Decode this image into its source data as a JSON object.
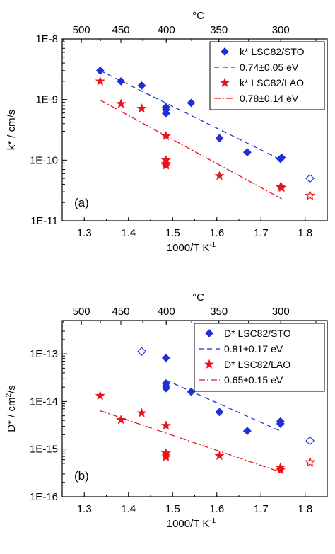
{
  "chart_data": [
    {
      "type": "scatter",
      "panel_label": "(a)",
      "xlabel": "1000/T K",
      "xlabel_sup": "-1",
      "ylabel": "k* / cm/s",
      "ylabel_sup": "",
      "top_axis_label": "°C",
      "y_log": true,
      "xlim": [
        1.25,
        1.85
      ],
      "ylim_exp": [
        -11,
        -8
      ],
      "x_ticks": [
        1.3,
        1.4,
        1.5,
        1.6,
        1.7,
        1.8
      ],
      "x_tick_labels": [
        "1.3",
        "1.4",
        "1.5",
        "1.6",
        "1.7",
        "1.8"
      ],
      "y_ticks_exp": [
        -11,
        -10,
        -9,
        -8
      ],
      "y_tick_labels": [
        "1E-11",
        "1E-10",
        "1E-9",
        "1E-8"
      ],
      "top_ticks_celsius": [
        500,
        450,
        400,
        350,
        300
      ],
      "top_tick_labels": [
        "500",
        "450",
        "400",
        "350",
        "300"
      ],
      "legend_position": "top-right",
      "series": [
        {
          "name": "k* LSC82/STO",
          "marker": "diamond",
          "color": "#1f2fd8",
          "x": [
            1.336,
            1.383,
            1.43,
            1.485,
            1.485,
            1.485,
            1.542,
            1.606,
            1.669,
            1.744,
            1.747
          ],
          "y": [
            3e-09,
            2e-09,
            1.7e-09,
            7.5e-10,
            6.8e-10,
            5.9e-10,
            8.8e-10,
            2.3e-10,
            1.35e-10,
            1.05e-10,
            1.1e-10
          ],
          "open_points": {
            "x": [
              1.811
            ],
            "y": [
              5e-11
            ]
          }
        },
        {
          "name": "k* LSC82/LAO",
          "marker": "star",
          "color": "#e8141b",
          "x": [
            1.336,
            1.383,
            1.43,
            1.485,
            1.485,
            1.485,
            1.485,
            1.606,
            1.744,
            1.747
          ],
          "y": [
            2e-09,
            8.5e-10,
            7.1e-10,
            2.5e-10,
            1e-10,
            8.8e-11,
            8.2e-11,
            5.5e-11,
            3.6e-11,
            3.5e-11
          ],
          "open_points": {
            "x": [
              1.811
            ],
            "y": [
              2.6e-11
            ]
          }
        }
      ],
      "fits": [
        {
          "name": "0.74±0.05 eV",
          "style": "dashed",
          "color": "#1f2fd8",
          "x": [
            1.336,
            1.747
          ],
          "y": [
            3e-09,
            1e-10
          ]
        },
        {
          "name": "0.78±0.14 eV",
          "style": "dashdot",
          "color": "#e8141b",
          "x": [
            1.336,
            1.747
          ],
          "y": [
            9.8e-10,
            2.3e-11
          ]
        }
      ]
    },
    {
      "type": "scatter",
      "panel_label": "(b)",
      "xlabel": "1000/T K",
      "xlabel_sup": "-1",
      "ylabel": "D* / cm",
      "ylabel_sup": "2",
      "ylabel_tail": "/s",
      "top_axis_label": "°C",
      "y_log": true,
      "xlim": [
        1.25,
        1.85
      ],
      "ylim_exp": [
        -16,
        -12.3
      ],
      "x_ticks": [
        1.3,
        1.4,
        1.5,
        1.6,
        1.7,
        1.8
      ],
      "x_tick_labels": [
        "1.3",
        "1.4",
        "1.5",
        "1.6",
        "1.7",
        "1.8"
      ],
      "y_ticks_exp": [
        -16,
        -15,
        -14,
        -13
      ],
      "y_tick_labels": [
        "1E-16",
        "1E-15",
        "1E-14",
        "1E-13"
      ],
      "top_ticks_celsius": [
        500,
        450,
        400,
        350,
        300
      ],
      "top_tick_labels": [
        "500",
        "450",
        "400",
        "350",
        "300"
      ],
      "legend_position": "top-right",
      "series": [
        {
          "name": "D* LSC82/STO",
          "marker": "diamond",
          "color": "#1f2fd8",
          "x": [
            1.485,
            1.485,
            1.485,
            1.485,
            1.542,
            1.606,
            1.669,
            1.744,
            1.744
          ],
          "y": [
            8.2e-14,
            2.4e-14,
            2.1e-14,
            1.9e-14,
            1.6e-14,
            6e-15,
            2.4e-15,
            3.8e-15,
            3.4e-15
          ],
          "open_points": {
            "x": [
              1.43,
              1.811
            ],
            "y": [
              1.12e-13,
              1.5e-15
            ]
          }
        },
        {
          "name": "D* LSC82/LAO",
          "marker": "star",
          "color": "#e8141b",
          "x": [
            1.336,
            1.383,
            1.43,
            1.485,
            1.485,
            1.485,
            1.485,
            1.606,
            1.744,
            1.744
          ],
          "y": [
            1.32e-14,
            4.1e-15,
            5.7e-15,
            3.1e-15,
            8.2e-16,
            7.4e-16,
            6.8e-16,
            7.2e-16,
            4.1e-16,
            3.6e-16
          ],
          "open_points": {
            "x": [
              1.811
            ],
            "y": [
              5.3e-16
            ]
          }
        }
      ],
      "fits": [
        {
          "name": "0.81±0.17 eV",
          "style": "dashed",
          "color": "#1f2fd8",
          "x": [
            1.485,
            1.744
          ],
          "y": [
            2.8e-14,
            2.4e-15
          ]
        },
        {
          "name": "0.65±0.15 eV",
          "style": "dashdot",
          "color": "#e8141b",
          "x": [
            1.336,
            1.744
          ],
          "y": [
            6.4e-15,
            3.3e-16
          ]
        }
      ]
    }
  ]
}
